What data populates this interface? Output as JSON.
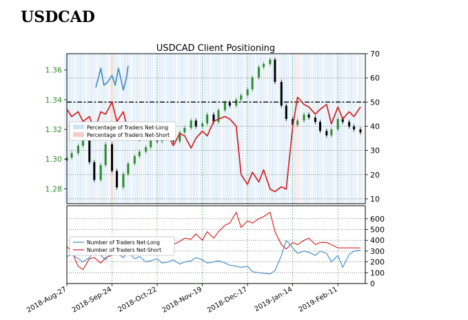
{
  "heading": "USDCAD",
  "chart_data": [
    {
      "type": "line",
      "title": "USDCAD Client Positioning",
      "x_tick_labels": [
        "2018-Aug-27",
        "2018-Sep-24",
        "2018-Oct-22",
        "2018-Nov-19",
        "2018-Dec-17",
        "2019-Jan-14",
        "2019-Feb-11"
      ],
      "x_ticks": [
        "2018-08-27",
        "2018-09-24",
        "2018-10-22",
        "2018-11-19",
        "2018-12-17",
        "2019-01-14",
        "2019-02-11"
      ],
      "x_range": [
        "2018-08-27",
        "2019-02-28"
      ],
      "grid": true,
      "legend_position": "left-middle",
      "reference_line": {
        "axis": "right",
        "value": 50,
        "style": "dash-dot",
        "color": "#000000"
      },
      "price_axis": {
        "side": "left",
        "range": [
          1.27,
          1.371
        ],
        "ticks": [
          "1.28",
          "1.30",
          "1.32",
          "1.34",
          "1.36"
        ],
        "color": "#2e8b2e"
      },
      "percent_axis": {
        "side": "right",
        "range": [
          8,
          70
        ],
        "ticks": [
          "10",
          "20",
          "30",
          "40",
          "50",
          "60",
          "70"
        ]
      },
      "price_series": {
        "name": "USDCAD",
        "type": "candlestick",
        "up_color": "#2e8b2e",
        "down_color": "#000000",
        "x": [
          "2018-08-27",
          "2018-08-30",
          "2018-09-03",
          "2018-09-06",
          "2018-09-10",
          "2018-09-13",
          "2018-09-17",
          "2018-09-20",
          "2018-09-24",
          "2018-09-27",
          "2018-10-01",
          "2018-10-04",
          "2018-10-08",
          "2018-10-11",
          "2018-10-15",
          "2018-10-18",
          "2018-10-22",
          "2018-10-25",
          "2018-10-29",
          "2018-11-01",
          "2018-11-05",
          "2018-11-08",
          "2018-11-12",
          "2018-11-15",
          "2018-11-19",
          "2018-11-22",
          "2018-11-26",
          "2018-11-29",
          "2018-12-03",
          "2018-12-06",
          "2018-12-10",
          "2018-12-13",
          "2018-12-17",
          "2018-12-20",
          "2018-12-24",
          "2018-12-27",
          "2018-12-31",
          "2019-01-03",
          "2019-01-07",
          "2019-01-10",
          "2019-01-14",
          "2019-01-17",
          "2019-01-21",
          "2019-01-24",
          "2019-01-28",
          "2019-01-31",
          "2019-02-04",
          "2019-02-07",
          "2019-02-11",
          "2019-02-14",
          "2019-02-18",
          "2019-02-21",
          "2019-02-25"
        ],
        "close": [
          1.301,
          1.304,
          1.309,
          1.316,
          1.298,
          1.286,
          1.296,
          1.31,
          1.292,
          1.281,
          1.29,
          1.297,
          1.302,
          1.305,
          1.308,
          1.314,
          1.312,
          1.316,
          1.319,
          1.312,
          1.318,
          1.321,
          1.326,
          1.322,
          1.324,
          1.33,
          1.325,
          1.333,
          1.338,
          1.336,
          1.34,
          1.343,
          1.347,
          1.355,
          1.362,
          1.364,
          1.367,
          1.352,
          1.336,
          1.327,
          1.323,
          1.326,
          1.33,
          1.328,
          1.325,
          1.319,
          1.316,
          1.32,
          1.327,
          1.325,
          1.322,
          1.32,
          1.318
        ]
      },
      "series": [
        {
          "name": "Percentage of Traders Net-Long",
          "color": "#4a90c8",
          "axis": "right",
          "x": [
            "2018-09-14",
            "2018-09-17",
            "2018-09-19",
            "2018-09-21",
            "2018-09-24",
            "2018-09-26",
            "2018-09-28",
            "2018-10-01",
            "2018-10-03",
            "2018-10-04"
          ],
          "values": [
            56,
            64,
            57,
            58,
            61,
            57,
            64,
            55,
            60,
            65
          ]
        },
        {
          "name": "Percentage of Traders Net-Short",
          "color": "#d62728",
          "axis": "right",
          "x": [
            "2018-08-27",
            "2018-08-30",
            "2018-09-03",
            "2018-09-06",
            "2018-09-10",
            "2018-09-13",
            "2018-09-17",
            "2018-09-20",
            "2018-09-24",
            "2018-09-27",
            "2018-10-01",
            "2018-10-04",
            "2018-10-08",
            "2018-10-11",
            "2018-10-15",
            "2018-10-18",
            "2018-10-22",
            "2018-10-25",
            "2018-10-29",
            "2018-11-01",
            "2018-11-05",
            "2018-11-08",
            "2018-11-12",
            "2018-11-15",
            "2018-11-19",
            "2018-11-22",
            "2018-11-26",
            "2018-11-29",
            "2018-12-03",
            "2018-12-06",
            "2018-12-10",
            "2018-12-13",
            "2018-12-17",
            "2018-12-20",
            "2018-12-24",
            "2018-12-27",
            "2018-12-31",
            "2019-01-03",
            "2019-01-07",
            "2019-01-10",
            "2019-01-14",
            "2019-01-17",
            "2019-01-21",
            "2019-01-24",
            "2019-01-28",
            "2019-01-31",
            "2019-02-04",
            "2019-02-07",
            "2019-02-11",
            "2019-02-14",
            "2019-02-18",
            "2019-02-21",
            "2019-02-25"
          ],
          "values": [
            47,
            44,
            46,
            42,
            44,
            38,
            46,
            45,
            50,
            42,
            46,
            38,
            40,
            34,
            37,
            36,
            35,
            39,
            36,
            32,
            37,
            36,
            31,
            35,
            38,
            36,
            42,
            43,
            44,
            43,
            40,
            20,
            16,
            21,
            17,
            22,
            14,
            13,
            15,
            14,
            40,
            52,
            49,
            48,
            45,
            47,
            49,
            41,
            48,
            43,
            46,
            44,
            48
          ]
        }
      ]
    },
    {
      "type": "line",
      "y_range": [
        0,
        720
      ],
      "y_ticks": [
        "0",
        "100",
        "200",
        "300",
        "400",
        "500",
        "600"
      ],
      "x_range": [
        "2018-08-27",
        "2019-02-28"
      ],
      "grid": true,
      "legend_position": "left-middle",
      "series": [
        {
          "name": "Number of Traders Net-Long",
          "color": "#4a90c8",
          "x": [
            "2018-08-27",
            "2018-08-30",
            "2018-09-03",
            "2018-09-06",
            "2018-09-10",
            "2018-09-13",
            "2018-09-17",
            "2018-09-20",
            "2018-09-24",
            "2018-09-27",
            "2018-10-01",
            "2018-10-04",
            "2018-10-08",
            "2018-10-11",
            "2018-10-15",
            "2018-10-18",
            "2018-10-22",
            "2018-10-25",
            "2018-10-29",
            "2018-11-01",
            "2018-11-05",
            "2018-11-08",
            "2018-11-12",
            "2018-11-15",
            "2018-11-19",
            "2018-11-22",
            "2018-11-26",
            "2018-11-29",
            "2018-12-03",
            "2018-12-06",
            "2018-12-10",
            "2018-12-13",
            "2018-12-17",
            "2018-12-20",
            "2018-12-24",
            "2018-12-27",
            "2018-12-31",
            "2019-01-03",
            "2019-01-07",
            "2019-01-10",
            "2019-01-14",
            "2019-01-17",
            "2019-01-21",
            "2019-01-24",
            "2019-01-28",
            "2019-01-31",
            "2019-02-04",
            "2019-02-07",
            "2019-02-11",
            "2019-02-14",
            "2019-02-18",
            "2019-02-21",
            "2019-02-25"
          ],
          "values": [
            250,
            270,
            230,
            200,
            240,
            300,
            260,
            220,
            300,
            280,
            240,
            290,
            230,
            250,
            200,
            210,
            230,
            190,
            200,
            220,
            180,
            200,
            210,
            240,
            220,
            190,
            200,
            210,
            190,
            170,
            160,
            150,
            160,
            110,
            100,
            95,
            90,
            120,
            260,
            400,
            330,
            280,
            300,
            290,
            260,
            300,
            280,
            200,
            260,
            150,
            270,
            300,
            310
          ]
        },
        {
          "name": "Number of Traders Net-Short",
          "color": "#d62728",
          "x": [
            "2018-08-27",
            "2018-08-30",
            "2018-09-03",
            "2018-09-06",
            "2018-09-10",
            "2018-09-13",
            "2018-09-17",
            "2018-09-20",
            "2018-09-24",
            "2018-09-27",
            "2018-10-01",
            "2018-10-04",
            "2018-10-08",
            "2018-10-11",
            "2018-10-15",
            "2018-10-18",
            "2018-10-22",
            "2018-10-25",
            "2018-10-29",
            "2018-11-01",
            "2018-11-05",
            "2018-11-08",
            "2018-11-12",
            "2018-11-15",
            "2018-11-19",
            "2018-11-22",
            "2018-11-26",
            "2018-11-29",
            "2018-12-03",
            "2018-12-06",
            "2018-12-10",
            "2018-12-13",
            "2018-12-17",
            "2018-12-20",
            "2018-12-24",
            "2018-12-27",
            "2018-12-31",
            "2019-01-03",
            "2019-01-07",
            "2019-01-10",
            "2019-01-14",
            "2019-01-17",
            "2019-01-21",
            "2019-01-24",
            "2019-01-28",
            "2019-01-31",
            "2019-02-04",
            "2019-02-07",
            "2019-02-11",
            "2019-02-14",
            "2019-02-18",
            "2019-02-21",
            "2019-02-25"
          ],
          "values": [
            340,
            300,
            160,
            130,
            230,
            240,
            190,
            240,
            260,
            300,
            270,
            320,
            360,
            390,
            340,
            390,
            340,
            380,
            410,
            360,
            390,
            420,
            410,
            460,
            400,
            480,
            420,
            480,
            540,
            560,
            660,
            520,
            580,
            560,
            600,
            620,
            660,
            480,
            360,
            320,
            380,
            360,
            400,
            420,
            360,
            380,
            380,
            360,
            330,
            330,
            330,
            330,
            330
          ]
        }
      ]
    }
  ]
}
